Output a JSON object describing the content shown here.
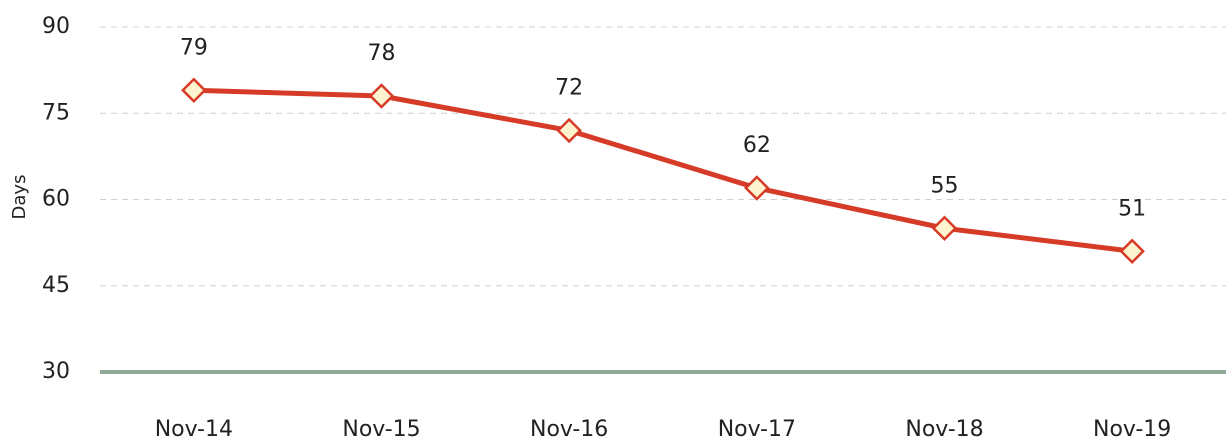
{
  "chart_data": {
    "type": "line",
    "y_label": "Days",
    "categories": [
      "Nov-14",
      "Nov-15",
      "Nov-16",
      "Nov-17",
      "Nov-18",
      "Nov-19"
    ],
    "series": [
      {
        "name": "Days",
        "color": "#d63b28",
        "marker_fill": "#fdf3cf",
        "values": [
          79,
          78,
          72,
          62,
          55,
          51
        ]
      }
    ],
    "ylim": [
      30,
      90
    ],
    "yticks": [
      30,
      45,
      60,
      75,
      90
    ],
    "grid": true,
    "axis_color": "#90a898"
  }
}
